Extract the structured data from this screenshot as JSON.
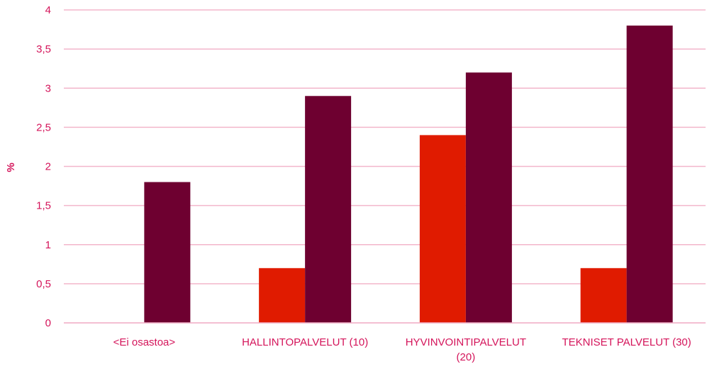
{
  "chart_data": {
    "type": "bar",
    "ylabel": "%",
    "xlabel": "",
    "ylim": [
      0,
      4
    ],
    "yticks": [
      {
        "value": 0,
        "label": "0"
      },
      {
        "value": 0.5,
        "label": "0,5"
      },
      {
        "value": 1,
        "label": "1"
      },
      {
        "value": 1.5,
        "label": "1,5"
      },
      {
        "value": 2,
        "label": "2"
      },
      {
        "value": 2.5,
        "label": "2,5"
      },
      {
        "value": 3,
        "label": "3"
      },
      {
        "value": 3.5,
        "label": "3,5"
      },
      {
        "value": 4,
        "label": "4"
      }
    ],
    "categories": [
      [
        "<Ei osastoa>"
      ],
      [
        "HALLINTOPALVELUT (10)"
      ],
      [
        "HYVINVOINTIPALVELUT",
        "(20)"
      ],
      [
        "TEKNISET PALVELUT (30)"
      ]
    ],
    "series": [
      {
        "color": "#e01b00",
        "values": [
          0,
          0.7,
          2.4,
          0.7
        ]
      },
      {
        "color": "#6e0030",
        "values": [
          1.8,
          2.9,
          3.2,
          3.8
        ]
      }
    ],
    "grid": true,
    "colors": {
      "text": "#d4145a",
      "grid": "#f3b6cb"
    }
  }
}
